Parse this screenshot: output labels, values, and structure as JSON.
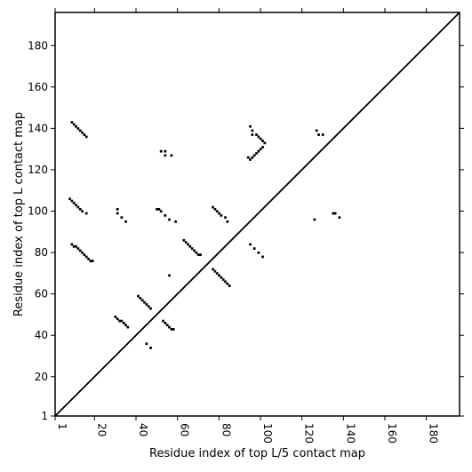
{
  "chart_data": {
    "type": "heatmap",
    "xlabel": "Residue index of top L/5 contact map",
    "ylabel": "Residue index of top L contact map",
    "xlim": [
      1,
      196
    ],
    "ylim": [
      1,
      196
    ],
    "x_ticks": [
      1,
      20,
      40,
      60,
      80,
      100,
      120,
      140,
      160,
      180
    ],
    "y_ticks": [
      1,
      20,
      40,
      60,
      80,
      100,
      120,
      140,
      160,
      180
    ],
    "diagonal": true,
    "colors": {
      "contact": "#000000",
      "background": "#ffffff",
      "axes": "#000000"
    },
    "series": [
      {
        "values": [
          [
            9,
            143
          ],
          [
            10,
            142
          ],
          [
            11,
            141
          ],
          [
            12,
            140
          ],
          [
            13,
            139
          ],
          [
            14,
            138
          ],
          [
            15,
            137
          ],
          [
            16,
            136
          ],
          [
            8,
            106
          ],
          [
            9,
            105
          ],
          [
            10,
            104
          ],
          [
            11,
            103
          ],
          [
            12,
            102
          ],
          [
            13,
            101
          ],
          [
            14,
            100
          ],
          [
            16,
            99
          ],
          [
            9,
            84
          ],
          [
            10,
            83
          ],
          [
            11,
            83
          ],
          [
            12,
            82
          ],
          [
            13,
            81
          ],
          [
            14,
            80
          ],
          [
            15,
            79
          ],
          [
            16,
            78
          ],
          [
            17,
            77
          ],
          [
            18,
            76
          ],
          [
            19,
            76
          ],
          [
            31,
            101
          ],
          [
            31,
            99
          ],
          [
            33,
            97
          ],
          [
            35,
            95
          ],
          [
            30,
            49
          ],
          [
            31,
            48
          ],
          [
            32,
            47
          ],
          [
            33,
            47
          ],
          [
            34,
            46
          ],
          [
            35,
            45
          ],
          [
            36,
            44
          ],
          [
            41,
            59
          ],
          [
            42,
            58
          ],
          [
            43,
            57
          ],
          [
            44,
            56
          ],
          [
            45,
            55
          ],
          [
            46,
            54
          ],
          [
            47,
            53
          ],
          [
            45,
            36
          ],
          [
            47,
            34
          ],
          [
            50,
            101
          ],
          [
            51,
            101
          ],
          [
            52,
            100
          ],
          [
            54,
            98
          ],
          [
            56,
            96
          ],
          [
            59,
            95
          ],
          [
            52,
            129
          ],
          [
            54,
            129
          ],
          [
            54,
            127
          ],
          [
            57,
            127
          ],
          [
            53,
            47
          ],
          [
            54,
            46
          ],
          [
            55,
            45
          ],
          [
            56,
            44
          ],
          [
            57,
            43
          ],
          [
            58,
            43
          ],
          [
            56,
            69
          ],
          [
            63,
            86
          ],
          [
            64,
            85
          ],
          [
            65,
            84
          ],
          [
            66,
            83
          ],
          [
            67,
            82
          ],
          [
            68,
            81
          ],
          [
            69,
            80
          ],
          [
            70,
            79
          ],
          [
            71,
            79
          ],
          [
            77,
            102
          ],
          [
            78,
            101
          ],
          [
            79,
            100
          ],
          [
            80,
            99
          ],
          [
            81,
            98
          ],
          [
            83,
            97
          ],
          [
            84,
            95
          ],
          [
            77,
            72
          ],
          [
            78,
            71
          ],
          [
            79,
            70
          ],
          [
            80,
            69
          ],
          [
            81,
            68
          ],
          [
            82,
            67
          ],
          [
            83,
            66
          ],
          [
            84,
            65
          ],
          [
            85,
            64
          ],
          [
            95,
            141
          ],
          [
            96,
            139
          ],
          [
            96,
            137
          ],
          [
            98,
            137
          ],
          [
            99,
            136
          ],
          [
            100,
            135
          ],
          [
            101,
            134
          ],
          [
            102,
            133
          ],
          [
            94,
            126
          ],
          [
            95,
            125
          ],
          [
            96,
            126
          ],
          [
            97,
            127
          ],
          [
            98,
            128
          ],
          [
            99,
            129
          ],
          [
            100,
            130
          ],
          [
            101,
            131
          ],
          [
            95,
            84
          ],
          [
            97,
            82
          ],
          [
            99,
            80
          ],
          [
            101,
            78
          ],
          [
            127,
            139
          ],
          [
            128,
            137
          ],
          [
            130,
            137
          ],
          [
            126,
            96
          ],
          [
            135,
            99
          ],
          [
            136,
            99
          ],
          [
            138,
            97
          ]
        ]
      }
    ]
  }
}
